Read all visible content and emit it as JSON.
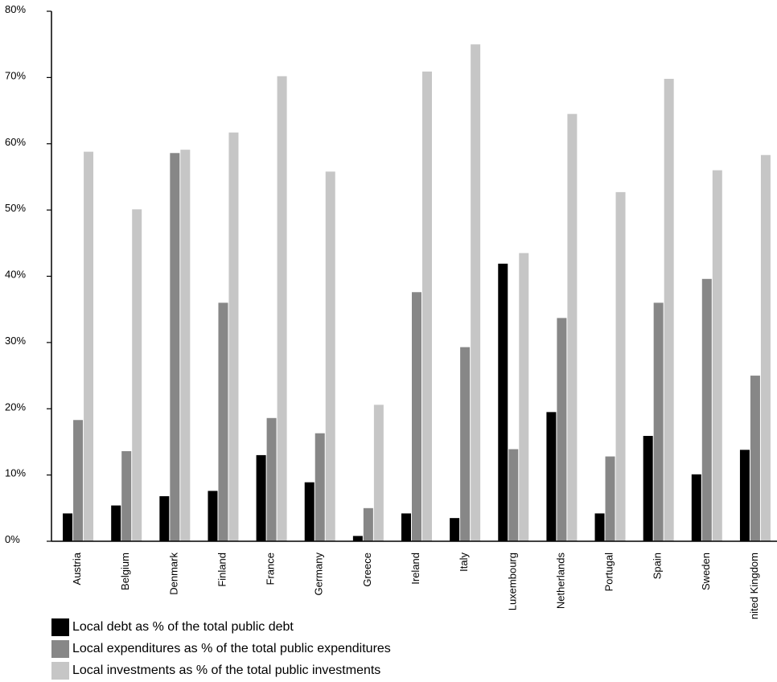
{
  "chart_data": {
    "type": "bar",
    "categories": [
      "Austria",
      "Belgium",
      "Denmark",
      "Finland",
      "France",
      "Germany",
      "Greece",
      "Ireland",
      "Italy",
      "Luxembourg",
      "Netherlands",
      "Portugal",
      "Spain",
      "Sweden",
      "United Kingdom"
    ],
    "series": [
      {
        "name": "Local debt as % of the total public debt",
        "color": "#000000",
        "values": [
          4.2,
          5.4,
          6.8,
          7.6,
          13.0,
          8.9,
          0.8,
          4.2,
          3.5,
          41.9,
          19.5,
          4.2,
          15.9,
          10.1,
          13.8
        ]
      },
      {
        "name": "Local expenditures as % of the total public expenditures",
        "color": "#878787",
        "values": [
          18.3,
          13.6,
          58.6,
          36.0,
          18.6,
          16.3,
          5.0,
          37.6,
          29.3,
          13.9,
          33.7,
          12.8,
          36.0,
          39.6,
          25.0
        ]
      },
      {
        "name": "Local investments as % of the total public investments",
        "color": "#c6c6c6",
        "values": [
          58.8,
          50.1,
          59.1,
          61.7,
          70.2,
          55.8,
          20.6,
          70.9,
          75.0,
          43.5,
          64.5,
          52.7,
          69.8,
          56.0,
          58.3
        ]
      }
    ],
    "yticks": [
      "0%",
      "10%",
      "20%",
      "30%",
      "40%",
      "50%",
      "60%",
      "70%",
      "80%"
    ],
    "ylim": [
      0,
      80
    ],
    "title": "",
    "xlabel": "",
    "ylabel": "",
    "legend_position": "bottom-left",
    "grid": false
  }
}
